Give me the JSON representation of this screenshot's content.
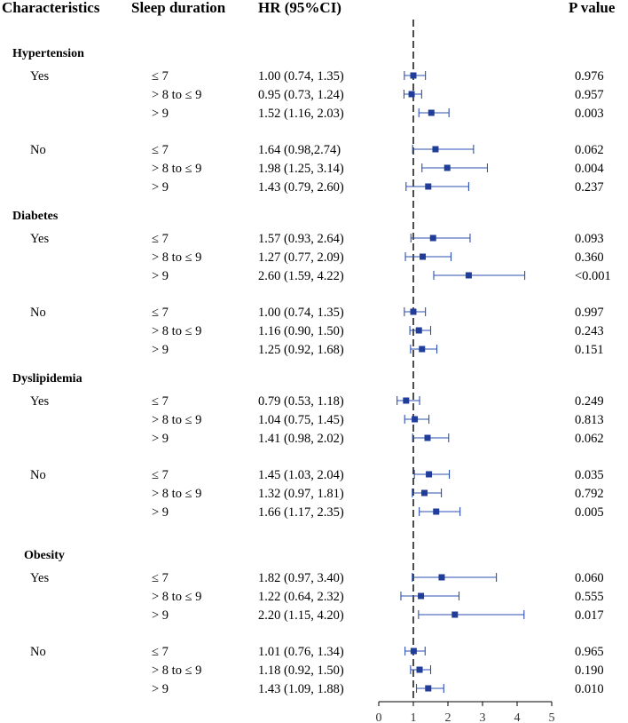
{
  "chart_data": {
    "type": "forest",
    "headers": {
      "characteristics": "Characteristics",
      "sleep": "Sleep duration",
      "hr": "HR (95%CI)",
      "p": "P value"
    },
    "reference_line": 1,
    "xlim": [
      0,
      5
    ],
    "xticks": [
      0,
      1,
      2,
      3,
      4,
      5
    ],
    "marker_color": "#1f3d99",
    "line_color": "#2b4fb0",
    "groups": [
      {
        "name": "Hypertension",
        "subgroups": [
          {
            "label": "Yes",
            "rows": [
              {
                "sleep": "≤ 7",
                "hr_text": "1.00 (0.74, 1.35)",
                "hr": 1.0,
                "lo": 0.74,
                "hi": 1.35,
                "p": "0.976"
              },
              {
                "sleep": "> 8 to ≤ 9",
                "hr_text": "0.95 (0.73, 1.24)",
                "hr": 0.95,
                "lo": 0.73,
                "hi": 1.24,
                "p": "0.957"
              },
              {
                "sleep": "> 9",
                "hr_text": "1.52 (1.16, 2.03)",
                "hr": 1.52,
                "lo": 1.16,
                "hi": 2.03,
                "p": "0.003"
              }
            ]
          },
          {
            "label": "No",
            "rows": [
              {
                "sleep": "≤ 7",
                "hr_text": "1.64 (0.98,2.74)",
                "hr": 1.64,
                "lo": 0.98,
                "hi": 2.74,
                "p": "0.062"
              },
              {
                "sleep": "> 8 to ≤ 9",
                "hr_text": "1.98 (1.25, 3.14)",
                "hr": 1.98,
                "lo": 1.25,
                "hi": 3.14,
                "p": "0.004"
              },
              {
                "sleep": "> 9",
                "hr_text": "1.43 (0.79, 2.60)",
                "hr": 1.43,
                "lo": 0.79,
                "hi": 2.6,
                "p": "0.237"
              }
            ]
          }
        ]
      },
      {
        "name": "Diabetes",
        "subgroups": [
          {
            "label": "Yes",
            "rows": [
              {
                "sleep": "≤ 7",
                "hr_text": "1.57 (0.93, 2.64)",
                "hr": 1.57,
                "lo": 0.93,
                "hi": 2.64,
                "p": "0.093"
              },
              {
                "sleep": "> 8 to ≤ 9",
                "hr_text": "1.27 (0.77, 2.09)",
                "hr": 1.27,
                "lo": 0.77,
                "hi": 2.09,
                "p": "0.360"
              },
              {
                "sleep": "> 9",
                "hr_text": "2.60 (1.59, 4.22)",
                "hr": 2.6,
                "lo": 1.59,
                "hi": 4.22,
                "p": "<0.001"
              }
            ]
          },
          {
            "label": "No",
            "rows": [
              {
                "sleep": "≤ 7",
                "hr_text": "1.00 (0.74, 1.35)",
                "hr": 1.0,
                "lo": 0.74,
                "hi": 1.35,
                "p": "0.997"
              },
              {
                "sleep": "> 8 to ≤ 9",
                "hr_text": "1.16 (0.90, 1.50)",
                "hr": 1.16,
                "lo": 0.9,
                "hi": 1.5,
                "p": "0.243"
              },
              {
                "sleep": "> 9",
                "hr_text": "1.25 (0.92, 1.68)",
                "hr": 1.25,
                "lo": 0.92,
                "hi": 1.68,
                "p": "0.151"
              }
            ]
          }
        ]
      },
      {
        "name": "Dyslipidemia",
        "subgroups": [
          {
            "label": "Yes",
            "rows": [
              {
                "sleep": "≤ 7",
                "hr_text": "0.79 (0.53, 1.18)",
                "hr": 0.79,
                "lo": 0.53,
                "hi": 1.18,
                "p": "0.249"
              },
              {
                "sleep": "> 8 to ≤ 9",
                "hr_text": "1.04 (0.75, 1.45)",
                "hr": 1.04,
                "lo": 0.75,
                "hi": 1.45,
                "p": "0.813"
              },
              {
                "sleep": "> 9",
                "hr_text": "1.41 (0.98, 2.02)",
                "hr": 1.41,
                "lo": 0.98,
                "hi": 2.02,
                "p": "0.062"
              }
            ]
          },
          {
            "label": "No",
            "rows": [
              {
                "sleep": "≤ 7",
                "hr_text": "1.45 (1.03, 2.04)",
                "hr": 1.45,
                "lo": 1.03,
                "hi": 2.04,
                "p": "0.035"
              },
              {
                "sleep": "> 8 to ≤ 9",
                "hr_text": "1.32 (0.97, 1.81)",
                "hr": 1.32,
                "lo": 0.97,
                "hi": 1.81,
                "p": "0.792"
              },
              {
                "sleep": "> 9",
                "hr_text": "1.66 (1.17, 2.35)",
                "hr": 1.66,
                "lo": 1.17,
                "hi": 2.35,
                "p": "0.005"
              }
            ]
          }
        ]
      },
      {
        "name": "Obesity",
        "subgroups": [
          {
            "label": "Yes",
            "rows": [
              {
                "sleep": "≤ 7",
                "hr_text": "1.82 (0.97, 3.40)",
                "hr": 1.82,
                "lo": 0.97,
                "hi": 3.4,
                "p": "0.060"
              },
              {
                "sleep": "> 8 to ≤ 9",
                "hr_text": "1.22 (0.64, 2.32)",
                "hr": 1.22,
                "lo": 0.64,
                "hi": 2.32,
                "p": "0.555"
              },
              {
                "sleep": "> 9",
                "hr_text": "2.20 (1.15, 4.20)",
                "hr": 2.2,
                "lo": 1.15,
                "hi": 4.2,
                "p": "0.017"
              }
            ]
          },
          {
            "label": "No",
            "rows": [
              {
                "sleep": "≤ 7",
                "hr_text": "1.01 (0.76, 1.34)",
                "hr": 1.01,
                "lo": 0.76,
                "hi": 1.34,
                "p": "0.965"
              },
              {
                "sleep": "> 8 to ≤ 9",
                "hr_text": "1.18 (0.92, 1.50)",
                "hr": 1.18,
                "lo": 0.92,
                "hi": 1.5,
                "p": "0.190"
              },
              {
                "sleep": "> 9",
                "hr_text": "1.43 (1.09, 1.88)",
                "hr": 1.43,
                "lo": 1.09,
                "hi": 1.88,
                "p": "0.010"
              }
            ]
          }
        ]
      }
    ]
  }
}
